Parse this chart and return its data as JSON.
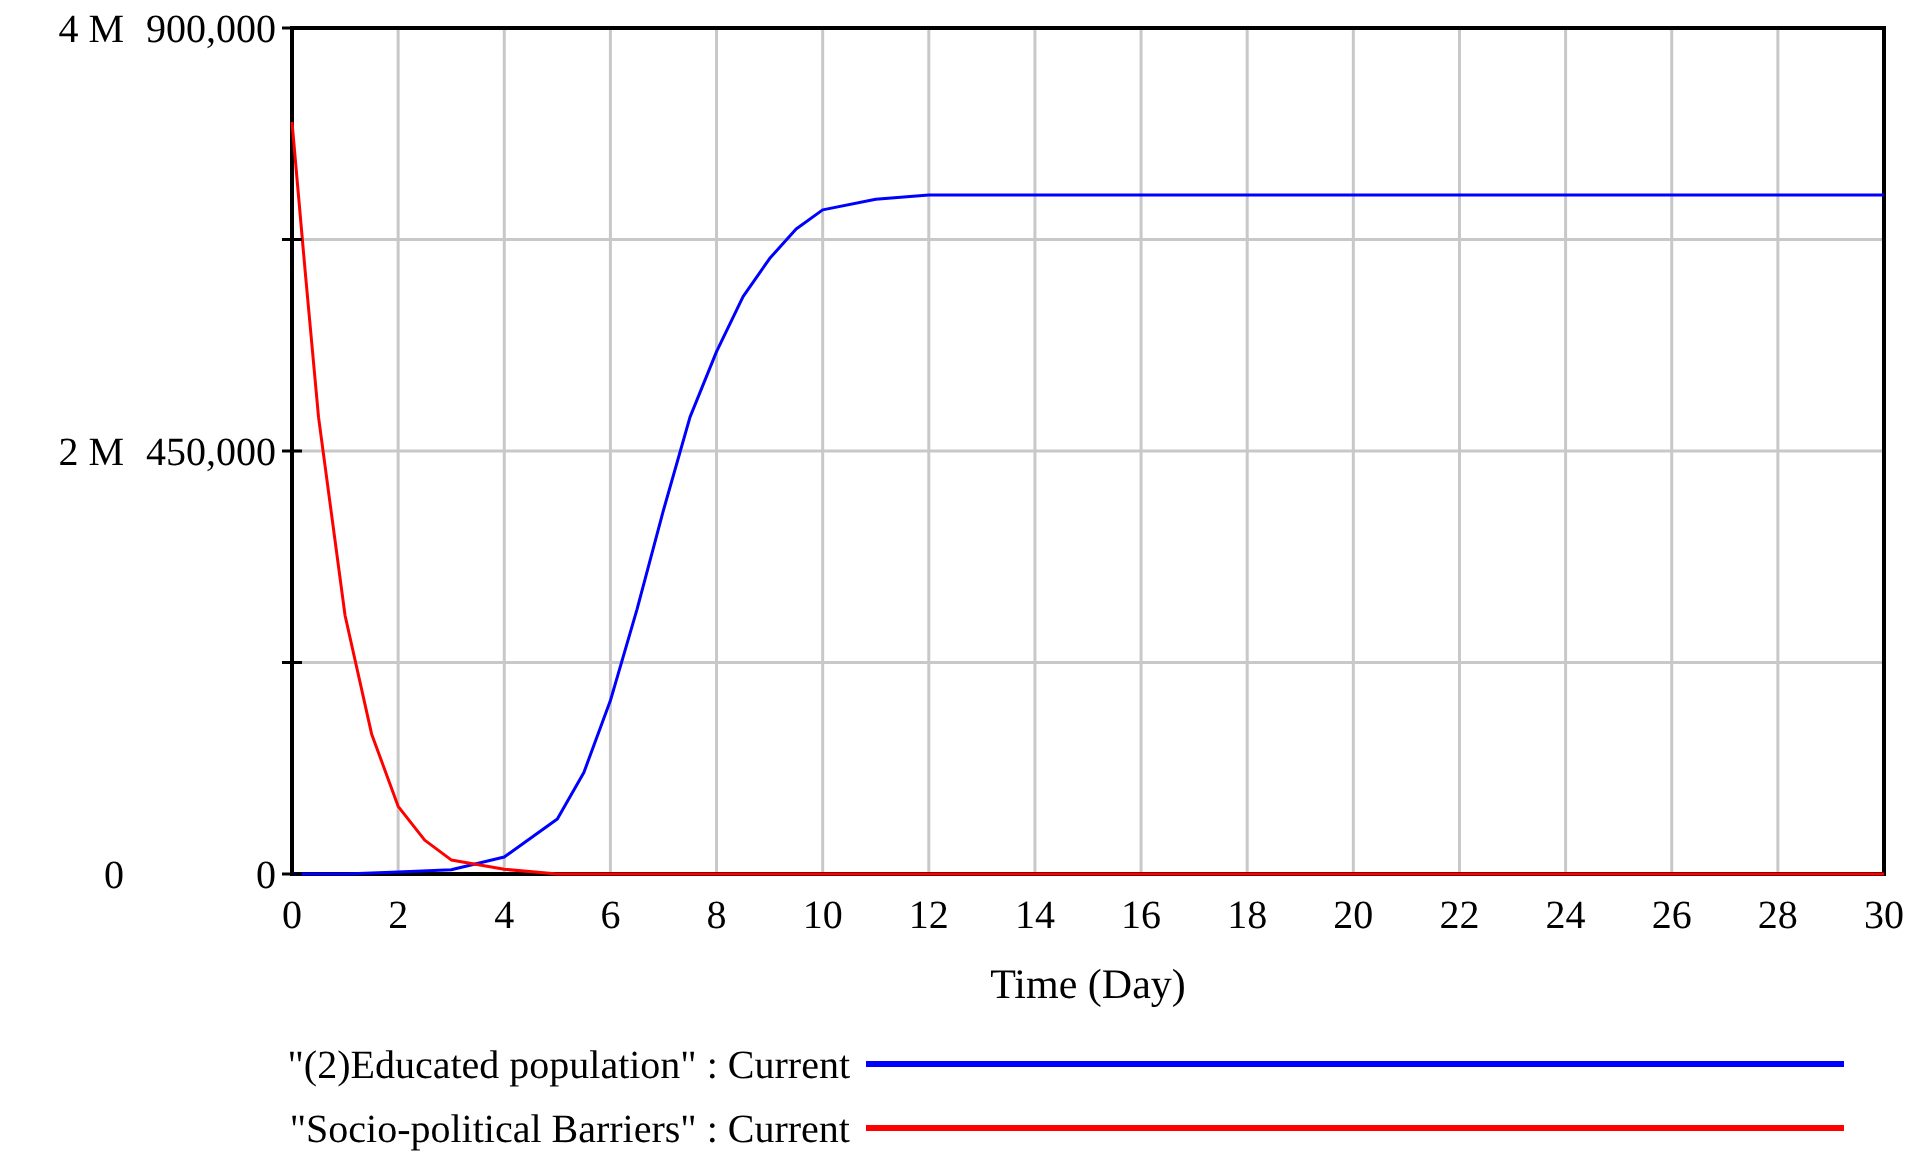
{
  "chart_data": {
    "type": "line",
    "xlabel": "Time (Day)",
    "grid": true,
    "legend": "bottom",
    "marker": "none",
    "line_style": "solid",
    "xlim": [
      0,
      30
    ],
    "xticks": [
      0,
      2,
      4,
      6,
      8,
      10,
      12,
      14,
      16,
      18,
      20,
      22,
      24,
      26,
      28,
      30
    ],
    "ylim": [
      0,
      4000000
    ],
    "yticks": [
      {
        "value": 0,
        "label": "0"
      },
      {
        "value": 1000000,
        "label": null
      },
      {
        "value": 2000000,
        "label": "2 M"
      },
      {
        "value": 3000000,
        "label": null
      },
      {
        "value": 4000000,
        "label": "4 M"
      }
    ],
    "y2lim": [
      0,
      900000
    ],
    "y2ticks": [
      {
        "value": 0,
        "label": "0"
      },
      {
        "value": 225000,
        "label": null
      },
      {
        "value": 450000,
        "label": "450,000"
      },
      {
        "value": 675000,
        "label": null
      },
      {
        "value": 900000,
        "label": "900,000"
      }
    ],
    "series": [
      {
        "name": "\"(2)Educated population\" : Current",
        "color": "#0000ff",
        "x": [
          0,
          1,
          2,
          3,
          4,
          5,
          5.5,
          6,
          6.5,
          7,
          7.5,
          8,
          8.5,
          9,
          9.5,
          10,
          11,
          12,
          14,
          16,
          20,
          25,
          30
        ],
        "values": [
          0,
          0,
          10000,
          20000,
          80000,
          260000,
          480000,
          820000,
          1250000,
          1720000,
          2160000,
          2470000,
          2730000,
          2910000,
          3050000,
          3140000,
          3190000,
          3210000,
          3210000,
          3210000,
          3210000,
          3210000,
          3210000
        ]
      },
      {
        "name": "\"Socio-political Barriers\" : Current",
        "color": "#ff0000",
        "axis": "y2",
        "x": [
          0,
          0.25,
          0.5,
          1,
          1.5,
          2,
          2.5,
          3,
          4,
          5,
          6,
          8,
          10,
          15,
          20,
          25,
          30
        ],
        "values": [
          800000,
          640000,
          486000,
          275000,
          149000,
          72000,
          36000,
          15000,
          5000,
          0,
          0,
          0,
          0,
          0,
          0,
          0,
          0
        ]
      }
    ]
  }
}
